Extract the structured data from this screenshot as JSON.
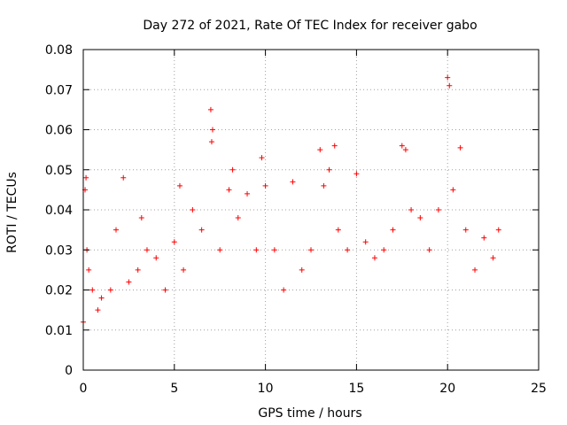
{
  "chart_data": {
    "type": "scatter",
    "title": "Day 272 of 2021, Rate Of TEC Index for receiver gabo",
    "xlabel": "GPS time / hours",
    "ylabel": "ROTI / TECUs",
    "xlim": [
      0,
      25
    ],
    "ylim": [
      0,
      0.08
    ],
    "x_ticks": [
      0,
      5,
      10,
      15,
      20,
      25
    ],
    "x_tick_labels": [
      "0",
      "5",
      "10",
      "15",
      "20",
      "25"
    ],
    "y_ticks": [
      0,
      0.01,
      0.02,
      0.03,
      0.04,
      0.05,
      0.06,
      0.07,
      0.08
    ],
    "y_tick_labels": [
      "0",
      "0.01",
      "0.02",
      "0.03",
      "0.04",
      "0.05",
      "0.06",
      "0.07",
      "0.08"
    ],
    "grid": true,
    "marker": "+",
    "color": "#ff0000",
    "series": [
      {
        "name": "ROTI",
        "x": [
          0.0,
          0.1,
          0.15,
          0.2,
          0.3,
          0.5,
          0.8,
          1.0,
          1.5,
          1.8,
          2.2,
          2.5,
          3.0,
          3.2,
          3.5,
          4.0,
          4.5,
          5.0,
          5.3,
          5.5,
          6.0,
          6.5,
          7.0,
          7.05,
          7.1,
          7.5,
          8.0,
          8.2,
          8.5,
          9.0,
          9.5,
          9.8,
          10.0,
          10.5,
          11.0,
          11.5,
          12.0,
          12.5,
          13.0,
          13.2,
          13.5,
          13.8,
          14.0,
          14.5,
          15.0,
          15.5,
          16.0,
          16.5,
          17.0,
          17.5,
          17.7,
          18.0,
          18.5,
          19.0,
          19.5,
          20.0,
          20.1,
          20.3,
          20.7,
          21.0,
          21.5,
          22.0,
          22.5,
          22.8
        ],
        "y": [
          0.012,
          0.045,
          0.048,
          0.03,
          0.025,
          0.02,
          0.015,
          0.018,
          0.02,
          0.035,
          0.048,
          0.022,
          0.025,
          0.038,
          0.03,
          0.028,
          0.02,
          0.032,
          0.046,
          0.025,
          0.04,
          0.035,
          0.065,
          0.057,
          0.06,
          0.03,
          0.045,
          0.05,
          0.038,
          0.044,
          0.03,
          0.053,
          0.046,
          0.03,
          0.02,
          0.047,
          0.025,
          0.03,
          0.055,
          0.046,
          0.05,
          0.056,
          0.035,
          0.03,
          0.049,
          0.032,
          0.028,
          0.03,
          0.035,
          0.056,
          0.055,
          0.04,
          0.038,
          0.03,
          0.04,
          0.073,
          0.071,
          0.045,
          0.0555,
          0.035,
          0.025,
          0.033,
          0.028,
          0.035
        ]
      }
    ]
  }
}
